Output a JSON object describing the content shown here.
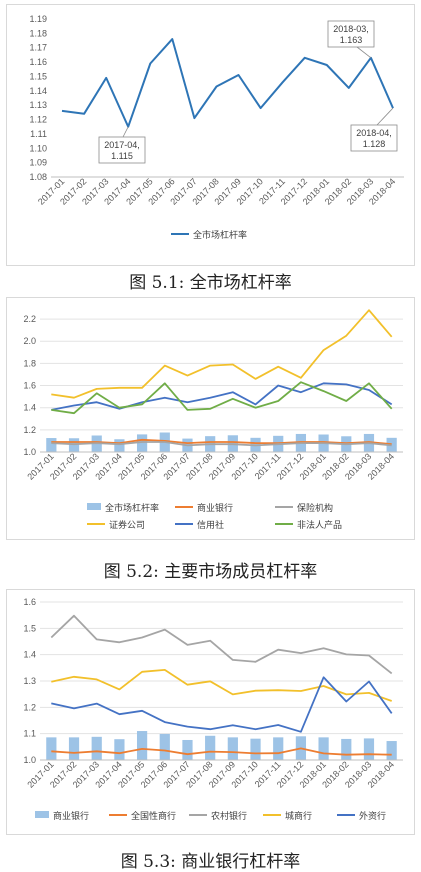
{
  "captions": [
    "图 5.1:  全市场杠杆率",
    "图 5.2:  主要市场成员杠杆率",
    "图 5.3:  商业银行杠杆率"
  ],
  "chart_data": [
    {
      "type": "line",
      "categories": [
        "2017-01",
        "2017-02",
        "2017-03",
        "2017-04",
        "2017-05",
        "2017-06",
        "2017-07",
        "2017-08",
        "2017-09",
        "2017-10",
        "2017-11",
        "2017-12",
        "2018-01",
        "2018-02",
        "2018-03",
        "2018-04"
      ],
      "series": [
        {
          "name": "全市场杠杆率",
          "color": "#2e75b6",
          "values": [
            1.126,
            1.124,
            1.149,
            1.115,
            1.159,
            1.176,
            1.121,
            1.143,
            1.151,
            1.128,
            1.146,
            1.163,
            1.158,
            1.142,
            1.163,
            1.128
          ]
        }
      ],
      "annotations": [
        {
          "index": 3,
          "lines": [
            "2017-04,",
            "1.115"
          ]
        },
        {
          "index": 14,
          "lines": [
            "2018-03,",
            "1.163"
          ]
        },
        {
          "index": 15,
          "lines": [
            "2018-04,",
            "1.128"
          ]
        }
      ],
      "ylim": [
        1.08,
        1.19
      ],
      "yticks": [
        "1.08",
        "1.09",
        "1.10",
        "1.11",
        "1.12",
        "1.13",
        "1.14",
        "1.15",
        "1.16",
        "1.17",
        "1.18",
        "1.19"
      ],
      "grid": false,
      "legend": "bottom"
    },
    {
      "type": "bar+line",
      "categories": [
        "2017-01",
        "2017-02",
        "2017-03",
        "2017-04",
        "2017-05",
        "2017-06",
        "2017-07",
        "2017-08",
        "2017-09",
        "2017-10",
        "2017-11",
        "2017-12",
        "2018-01",
        "2018-02",
        "2018-03",
        "2018-04"
      ],
      "bar_series": {
        "name": "全市场杠杆率",
        "color": "#9dc3e6",
        "values": [
          1.126,
          1.124,
          1.149,
          1.115,
          1.159,
          1.176,
          1.121,
          1.143,
          1.151,
          1.128,
          1.146,
          1.163,
          1.158,
          1.142,
          1.163,
          1.128
        ]
      },
      "series": [
        {
          "name": "商业银行",
          "color": "#ed7d31",
          "values": [
            1.09,
            1.09,
            1.09,
            1.08,
            1.11,
            1.1,
            1.08,
            1.09,
            1.09,
            1.08,
            1.08,
            1.09,
            1.09,
            1.08,
            1.09,
            1.07
          ]
        },
        {
          "name": "保险机构",
          "color": "#a5a5a5",
          "values": [
            1.08,
            1.07,
            1.08,
            1.07,
            1.09,
            1.09,
            1.06,
            1.07,
            1.07,
            1.06,
            1.07,
            1.08,
            1.08,
            1.07,
            1.08,
            1.06
          ]
        },
        {
          "name": "证券公司",
          "color": "#f2c02b",
          "values": [
            1.52,
            1.49,
            1.57,
            1.58,
            1.58,
            1.78,
            1.69,
            1.78,
            1.79,
            1.66,
            1.77,
            1.67,
            1.92,
            2.05,
            2.28,
            2.04
          ]
        },
        {
          "name": "信用社",
          "color": "#4472c4",
          "values": [
            1.38,
            1.42,
            1.45,
            1.39,
            1.45,
            1.49,
            1.45,
            1.49,
            1.54,
            1.43,
            1.6,
            1.54,
            1.62,
            1.61,
            1.56,
            1.43
          ]
        },
        {
          "name": "非法人产品",
          "color": "#70ad47",
          "values": [
            1.38,
            1.35,
            1.53,
            1.4,
            1.43,
            1.62,
            1.38,
            1.39,
            1.48,
            1.4,
            1.46,
            1.63,
            1.55,
            1.46,
            1.62,
            1.39
          ]
        }
      ],
      "ylim": [
        1.0,
        2.3
      ],
      "yticks": [
        "1.0",
        "1.2",
        "1.4",
        "1.6",
        "1.8",
        "2.0",
        "2.2"
      ],
      "grid": true,
      "legend": "bottom"
    },
    {
      "type": "bar+line",
      "categories": [
        "2017-01",
        "2017-02",
        "2017-03",
        "2017-04",
        "2017-05",
        "2017-06",
        "2017-07",
        "2017-08",
        "2017-09",
        "2017-10",
        "2017-11",
        "2017-12",
        "2018-01",
        "2018-02",
        "2018-03",
        "2018-04"
      ],
      "bar_series": {
        "name": "商业银行",
        "color": "#9dc3e6",
        "values": [
          1.086,
          1.086,
          1.088,
          1.079,
          1.11,
          1.099,
          1.076,
          1.092,
          1.086,
          1.081,
          1.086,
          1.09,
          1.086,
          1.08,
          1.082,
          1.072
        ]
      },
      "series": [
        {
          "name": "全国性商行",
          "color": "#ed7d31",
          "values": [
            1.033,
            1.027,
            1.033,
            1.026,
            1.042,
            1.036,
            1.022,
            1.032,
            1.03,
            1.025,
            1.026,
            1.044,
            1.025,
            1.02,
            1.022,
            1.02
          ]
        },
        {
          "name": "农村银行",
          "color": "#a5a5a5",
          "values": [
            1.465,
            1.548,
            1.458,
            1.447,
            1.465,
            1.495,
            1.437,
            1.453,
            1.38,
            1.373,
            1.419,
            1.406,
            1.424,
            1.401,
            1.397,
            1.329
          ]
        },
        {
          "name": "城商行",
          "color": "#f2c02b",
          "values": [
            1.297,
            1.316,
            1.306,
            1.268,
            1.335,
            1.342,
            1.286,
            1.299,
            1.249,
            1.263,
            1.265,
            1.262,
            1.281,
            1.249,
            1.255,
            1.224
          ]
        },
        {
          "name": "外资行",
          "color": "#4472c4",
          "values": [
            1.215,
            1.196,
            1.214,
            1.174,
            1.187,
            1.144,
            1.127,
            1.117,
            1.132,
            1.117,
            1.133,
            1.107,
            1.314,
            1.222,
            1.298,
            1.177
          ]
        }
      ],
      "ylim": [
        1.0,
        1.6
      ],
      "yticks": [
        "1.0",
        "1.1",
        "1.2",
        "1.3",
        "1.4",
        "1.5",
        "1.6"
      ],
      "grid": true,
      "legend": "bottom"
    }
  ]
}
